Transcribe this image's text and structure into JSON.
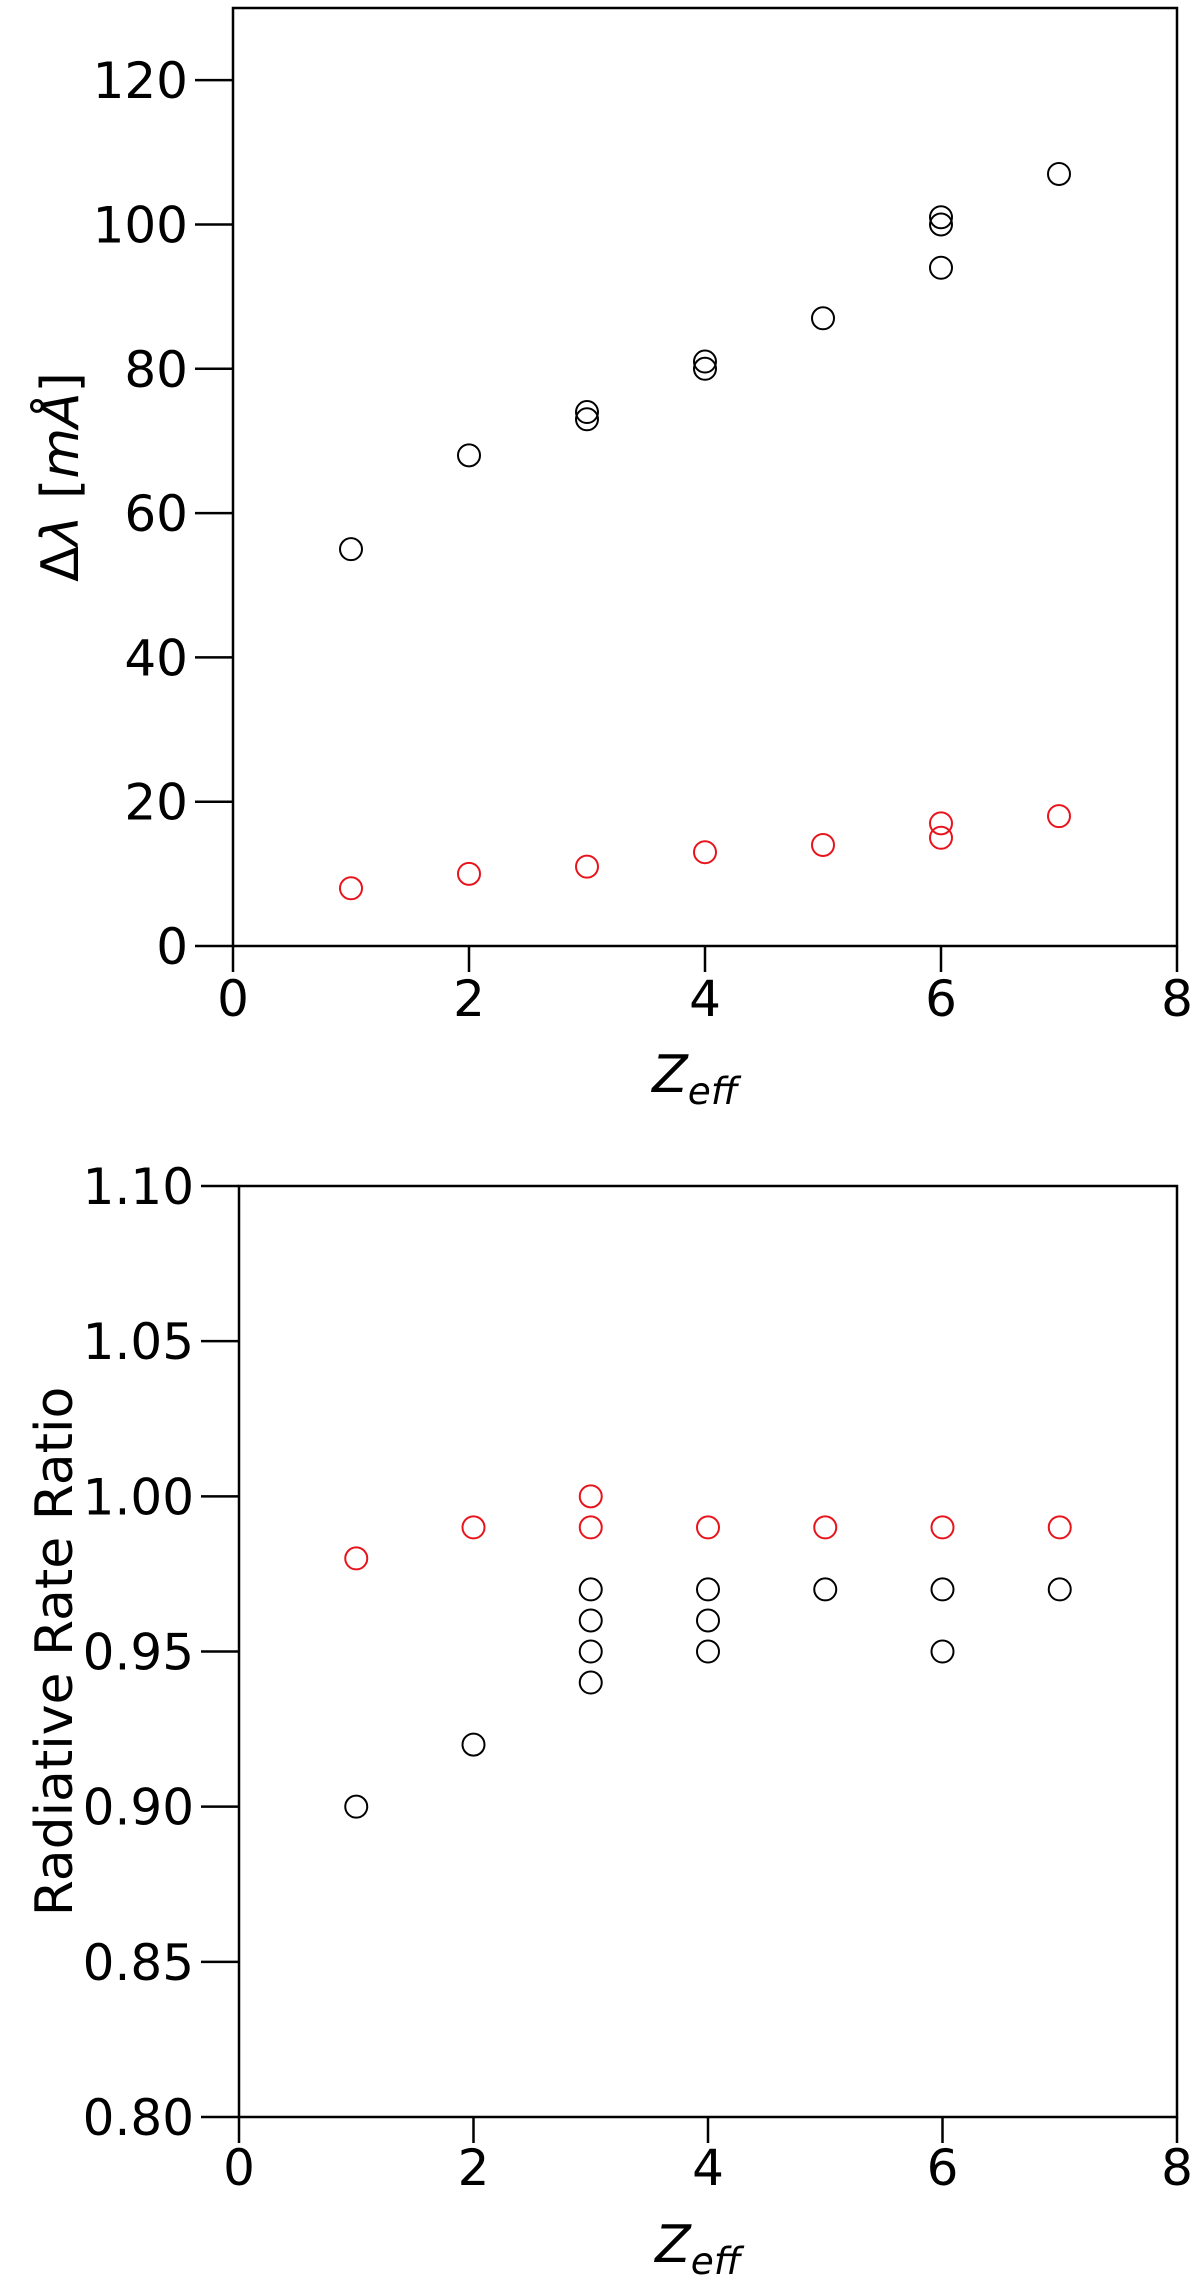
{
  "chart_data": [
    {
      "type": "scatter",
      "panel": "top",
      "xlabel": "Z",
      "xlabel_sub": "eff",
      "ylabel_prefix": "Δ",
      "ylabel_symbol": "λ",
      "ylabel_units": "mÅ",
      "xlim": [
        0,
        8
      ],
      "ylim": [
        0,
        130
      ],
      "xticks": [
        0,
        2,
        4,
        6,
        8
      ],
      "yticks": [
        0,
        20,
        40,
        60,
        80,
        100,
        120
      ],
      "xtick_labels": [
        "0",
        "2",
        "4",
        "6",
        "8"
      ],
      "ytick_labels": [
        "0",
        "20",
        "40",
        "60",
        "80",
        "100",
        "120"
      ],
      "grid": false,
      "marker": "open-circle",
      "series": [
        {
          "color": "#000000",
          "points": [
            [
              1,
              55
            ],
            [
              2,
              68
            ],
            [
              3,
              74
            ],
            [
              3,
              73
            ],
            [
              4,
              81
            ],
            [
              4,
              80
            ],
            [
              5,
              87
            ],
            [
              6,
              101
            ],
            [
              6,
              100
            ],
            [
              6,
              94
            ],
            [
              7,
              107
            ]
          ]
        },
        {
          "color": "#e8141c",
          "points": [
            [
              1,
              8
            ],
            [
              2,
              10
            ],
            [
              3,
              11
            ],
            [
              4,
              13
            ],
            [
              5,
              14
            ],
            [
              6,
              17
            ],
            [
              6,
              15
            ],
            [
              7,
              18
            ]
          ]
        }
      ]
    },
    {
      "type": "scatter",
      "panel": "bottom",
      "xlabel": "Z",
      "xlabel_sub": "eff",
      "ylabel": "Radiative Rate Ratio",
      "xlim": [
        0,
        8
      ],
      "ylim": [
        0.8,
        1.1
      ],
      "xticks": [
        0,
        2,
        4,
        6,
        8
      ],
      "yticks": [
        0.8,
        0.85,
        0.9,
        0.95,
        1.0,
        1.05,
        1.1
      ],
      "xtick_labels": [
        "0",
        "2",
        "4",
        "6",
        "8"
      ],
      "ytick_labels": [
        "0.80",
        "0.85",
        "0.90",
        "0.95",
        "1.00",
        "1.05",
        "1.10"
      ],
      "grid": false,
      "marker": "open-circle",
      "series": [
        {
          "color": "#000000",
          "points": [
            [
              1,
              0.9
            ],
            [
              2,
              0.92
            ],
            [
              3,
              0.97
            ],
            [
              3,
              0.96
            ],
            [
              3,
              0.95
            ],
            [
              3,
              0.94
            ],
            [
              4,
              0.97
            ],
            [
              4,
              0.96
            ],
            [
              4,
              0.95
            ],
            [
              5,
              0.97
            ],
            [
              6,
              0.97
            ],
            [
              6,
              0.95
            ],
            [
              7,
              0.97
            ]
          ]
        },
        {
          "color": "#e8141c",
          "points": [
            [
              1,
              0.98
            ],
            [
              2,
              0.99
            ],
            [
              3,
              1.0
            ],
            [
              3,
              0.99
            ],
            [
              4,
              0.99
            ],
            [
              5,
              0.99
            ],
            [
              6,
              0.99
            ],
            [
              7,
              0.99
            ]
          ]
        }
      ]
    }
  ]
}
